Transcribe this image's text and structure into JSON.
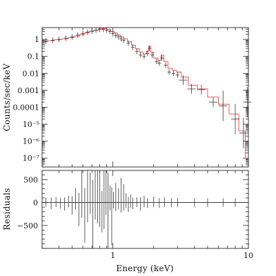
{
  "chart_data": {
    "type": "scatter",
    "x_scale": "log",
    "xlim": [
      0.3,
      10
    ],
    "xlabel": "Energy (keV)",
    "x_ticks": [
      {
        "value": 1,
        "label": "1"
      },
      {
        "value": 10,
        "label": "10"
      }
    ],
    "colors": {
      "data": "#333333",
      "model": "#e8454a",
      "frame": "#222222"
    },
    "panels": [
      {
        "name": "spectrum",
        "ylabel": "Counts/sec/keV",
        "y_scale": "log",
        "ylim": [
          3e-08,
          5
        ],
        "y_ticks": [
          {
            "value": 1,
            "label": "1"
          },
          {
            "value": 0.1,
            "label": "0.1"
          },
          {
            "value": 0.01,
            "label": "0.01"
          },
          {
            "value": 0.001,
            "label": "0.001"
          },
          {
            "value": 0.0001,
            "label": "0.0001"
          },
          {
            "value": 1e-05,
            "label": "10⁻⁵"
          },
          {
            "value": 1e-06,
            "label": "10⁻⁶"
          },
          {
            "value": 1e-07,
            "label": "10⁻⁷"
          }
        ],
        "series": [
          {
            "role": "data",
            "points": [
              [
                0.32,
                0.8
              ],
              [
                0.36,
                0.9
              ],
              [
                0.4,
                1.0
              ],
              [
                0.45,
                1.2
              ],
              [
                0.5,
                1.4
              ],
              [
                0.55,
                1.8
              ],
              [
                0.6,
                2.2
              ],
              [
                0.65,
                2.7
              ],
              [
                0.7,
                3.1
              ],
              [
                0.75,
                3.6
              ],
              [
                0.8,
                4.0
              ],
              [
                0.85,
                3.9
              ],
              [
                0.9,
                3.5
              ],
              [
                0.95,
                3.0
              ],
              [
                1.0,
                2.2
              ],
              [
                1.05,
                1.7
              ],
              [
                1.1,
                1.4
              ],
              [
                1.15,
                1.1
              ],
              [
                1.2,
                0.9
              ],
              [
                1.3,
                0.6
              ],
              [
                1.4,
                0.35
              ],
              [
                1.5,
                0.2
              ],
              [
                1.6,
                0.12
              ],
              [
                1.7,
                0.1
              ],
              [
                1.8,
                0.15
              ],
              [
                1.86,
                0.3
              ],
              [
                1.95,
                0.12
              ],
              [
                2.1,
                0.05
              ],
              [
                2.2,
                0.04
              ],
              [
                2.3,
                0.08
              ],
              [
                2.45,
                0.03
              ],
              [
                2.6,
                0.012
              ],
              [
                2.8,
                0.01
              ],
              [
                3.0,
                0.008
              ],
              [
                3.3,
                0.004
              ],
              [
                3.8,
                0.0012
              ],
              [
                4.5,
                0.0011
              ],
              [
                5.5,
                0.0002
              ],
              [
                6.5,
                0.00012
              ],
              [
                8.0,
                2e-05
              ],
              [
                9.2,
                3e-06
              ],
              [
                9.8,
                0.0002
              ]
            ]
          },
          {
            "role": "model",
            "steps": [
              [
                0.3,
                0.75
              ],
              [
                0.33,
                0.85
              ],
              [
                0.37,
                0.95
              ],
              [
                0.42,
                1.1
              ],
              [
                0.47,
                1.3
              ],
              [
                0.52,
                1.6
              ],
              [
                0.57,
                2.0
              ],
              [
                0.62,
                2.5
              ],
              [
                0.67,
                3.0
              ],
              [
                0.72,
                3.5
              ],
              [
                0.78,
                4.2
              ],
              [
                0.84,
                4.4
              ],
              [
                0.9,
                3.7
              ],
              [
                0.96,
                3.0
              ],
              [
                1.02,
                2.4
              ],
              [
                1.08,
                1.8
              ],
              [
                1.14,
                1.4
              ],
              [
                1.2,
                1.1
              ],
              [
                1.28,
                0.75
              ],
              [
                1.37,
                0.45
              ],
              [
                1.47,
                0.28
              ],
              [
                1.57,
                0.18
              ],
              [
                1.67,
                0.14
              ],
              [
                1.77,
                0.2
              ],
              [
                1.84,
                0.4
              ],
              [
                1.9,
                0.18
              ],
              [
                2.0,
                0.08
              ],
              [
                2.15,
                0.06
              ],
              [
                2.27,
                0.12
              ],
              [
                2.38,
                0.05
              ],
              [
                2.55,
                0.02
              ],
              [
                2.75,
                0.015
              ],
              [
                2.95,
                0.012
              ],
              [
                3.2,
                0.006
              ],
              [
                3.6,
                0.002
              ],
              [
                4.2,
                0.0012
              ],
              [
                5.0,
                0.0004
              ],
              [
                6.0,
                0.00015
              ],
              [
                7.2,
                4e-05
              ],
              [
                8.5,
                4e-06
              ],
              [
                9.5,
                1e-07
              ],
              [
                10.0,
                1e-07
              ]
            ]
          }
        ]
      },
      {
        "name": "residuals",
        "ylabel": "Residuals",
        "y_scale": "linear",
        "ylim": [
          -1000,
          700
        ],
        "y_ticks": [
          {
            "value": 500,
            "label": "500"
          },
          {
            "value": 0,
            "label": "0"
          },
          {
            "value": -500,
            "label": "−500"
          }
        ],
        "series": [
          {
            "role": "data",
            "points": [
              [
                0.32,
                5
              ],
              [
                0.35,
                -20
              ],
              [
                0.38,
                10
              ],
              [
                0.41,
                -15
              ],
              [
                0.44,
                -30
              ],
              [
                0.47,
                20
              ],
              [
                0.5,
                -60
              ],
              [
                0.53,
                80
              ],
              [
                0.56,
                -150
              ],
              [
                0.59,
                300
              ],
              [
                0.62,
                -280
              ],
              [
                0.65,
                420
              ],
              [
                0.68,
                200
              ],
              [
                0.71,
                -500
              ],
              [
                0.74,
                350
              ],
              [
                0.77,
                450
              ],
              [
                0.8,
                550
              ],
              [
                0.83,
                -200
              ],
              [
                0.86,
                600
              ],
              [
                0.89,
                220
              ],
              [
                0.92,
                -700
              ],
              [
                0.95,
                100
              ],
              [
                0.98,
                -300
              ],
              [
                1.01,
                50
              ],
              [
                1.05,
                120
              ],
              [
                1.1,
                80
              ],
              [
                1.15,
                160
              ],
              [
                1.2,
                110
              ],
              [
                1.25,
                40
              ],
              [
                1.3,
                -40
              ],
              [
                1.35,
                30
              ],
              [
                1.4,
                -20
              ],
              [
                1.5,
                10
              ],
              [
                1.6,
                -30
              ],
              [
                1.7,
                20
              ],
              [
                1.8,
                -10
              ],
              [
                2.0,
                15
              ],
              [
                2.2,
                -10
              ],
              [
                2.4,
                8
              ],
              [
                2.7,
                -5
              ],
              [
                3.0,
                3
              ],
              [
                4.0,
                2
              ],
              [
                5.0,
                -2
              ],
              [
                6.5,
                1
              ],
              [
                8.0,
                -1
              ]
            ]
          }
        ]
      }
    ]
  }
}
